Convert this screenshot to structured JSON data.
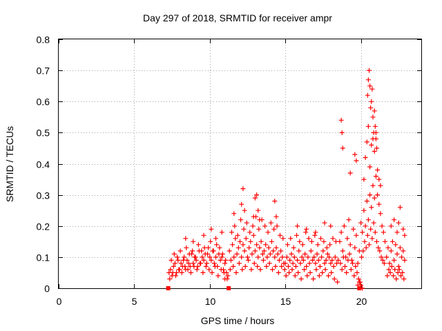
{
  "chart_data": {
    "type": "scatter",
    "title": "Day 297 of 2018, SRMTID for receiver ampr",
    "xlabel": "GPS time / hours",
    "ylabel": "SRMTID / TECUs",
    "xlim": [
      0,
      24
    ],
    "ylim": [
      0,
      0.8
    ],
    "grid": true,
    "x_ticks": [
      0,
      5,
      10,
      15,
      20
    ],
    "x_tick_labels": [
      "0",
      "5",
      "10",
      "15",
      "20"
    ],
    "y_ticks": [
      0,
      0.1,
      0.2,
      0.3,
      0.4,
      0.5,
      0.6,
      0.7,
      0.8
    ],
    "y_tick_labels": [
      "0",
      "0.1",
      "0.2",
      "0.3",
      "0.4",
      "0.5",
      "0.6",
      "0.7",
      "0.8"
    ],
    "marker": "+",
    "color": "#ff0000",
    "square_points": [
      {
        "x": 7.25,
        "y": 0.0
      },
      {
        "x": 11.25,
        "y": 0.0
      },
      {
        "x": 19.9,
        "y": 0.0
      }
    ],
    "series": [
      {
        "name": "SRMTID",
        "x": [
          7.3,
          7.4,
          7.5,
          7.6,
          7.7,
          7.8,
          7.9,
          8.0,
          8.1,
          8.2,
          8.3,
          8.4,
          8.5,
          8.6,
          8.7,
          8.8,
          8.9,
          9.0,
          9.1,
          9.2,
          9.3,
          9.4,
          9.5,
          9.6,
          9.7,
          9.8,
          9.9,
          10.0,
          10.1,
          10.2,
          10.3,
          10.4,
          10.5,
          10.6,
          10.7,
          10.8,
          10.9,
          11.0,
          11.1,
          11.2,
          7.35,
          7.55,
          7.75,
          7.95,
          8.15,
          8.35,
          8.55,
          8.75,
          8.95,
          9.15,
          9.35,
          9.55,
          9.75,
          9.95,
          10.15,
          10.35,
          10.55,
          10.75,
          10.95,
          11.15,
          7.45,
          7.65,
          7.85,
          8.05,
          8.25,
          8.45,
          8.65,
          8.85,
          9.05,
          9.25,
          9.45,
          9.65,
          9.85,
          10.05,
          10.25,
          10.45,
          10.65,
          10.85,
          11.05,
          8.4,
          8.9,
          9.6,
          10.1,
          10.4,
          10.8,
          11.0,
          11.3,
          11.4,
          11.5,
          11.6,
          11.7,
          11.8,
          11.9,
          12.0,
          12.1,
          12.2,
          12.3,
          12.4,
          12.5,
          12.6,
          12.7,
          12.8,
          12.9,
          13.0,
          13.1,
          13.2,
          13.3,
          13.4,
          13.5,
          13.6,
          13.7,
          13.8,
          13.9,
          14.0,
          14.1,
          14.2,
          14.3,
          14.4,
          14.5,
          14.6,
          14.7,
          14.8,
          14.9,
          11.35,
          11.55,
          11.75,
          11.95,
          12.15,
          12.35,
          12.55,
          12.75,
          12.95,
          13.15,
          13.35,
          13.55,
          13.75,
          13.95,
          14.15,
          14.35,
          14.55,
          14.75,
          14.95,
          11.45,
          11.65,
          11.85,
          12.05,
          12.25,
          12.45,
          12.65,
          12.85,
          13.05,
          13.25,
          13.45,
          13.65,
          13.85,
          14.05,
          14.25,
          14.45,
          14.65,
          14.85,
          11.6,
          12.1,
          12.2,
          12.3,
          12.9,
          13.0,
          13.1,
          13.2,
          13.3,
          14.3,
          14.4,
          15.0,
          15.1,
          15.2,
          15.3,
          15.4,
          15.5,
          15.6,
          15.7,
          15.8,
          15.9,
          16.0,
          16.1,
          16.2,
          16.3,
          16.4,
          16.5,
          16.6,
          16.7,
          16.8,
          16.9,
          17.0,
          17.1,
          17.2,
          17.3,
          17.4,
          17.5,
          17.6,
          17.7,
          17.8,
          17.9,
          18.0,
          18.1,
          18.2,
          18.3,
          18.4,
          18.5,
          15.05,
          15.25,
          15.45,
          15.65,
          15.85,
          16.05,
          16.25,
          16.45,
          16.65,
          16.85,
          17.05,
          17.25,
          17.45,
          17.65,
          17.85,
          18.05,
          18.25,
          18.45,
          15.15,
          15.35,
          15.55,
          15.75,
          15.95,
          16.15,
          16.35,
          16.55,
          16.75,
          16.95,
          17.15,
          17.35,
          17.55,
          17.75,
          17.95,
          18.15,
          18.35,
          15.8,
          16.4,
          17.0,
          17.6,
          18.0,
          18.6,
          18.7,
          18.8,
          18.9,
          19.0,
          19.1,
          19.2,
          19.3,
          19.4,
          19.5,
          19.6,
          19.7,
          19.8,
          19.9,
          20.0,
          20.1,
          20.2,
          20.3,
          20.4,
          20.5,
          20.6,
          20.7,
          20.8,
          20.9,
          21.0,
          21.1,
          21.2,
          21.3,
          21.4,
          21.5,
          21.6,
          18.65,
          18.75,
          18.85,
          18.95,
          19.05,
          19.15,
          19.25,
          19.35,
          19.45,
          19.55,
          19.65,
          19.75,
          19.85,
          19.95,
          20.05,
          20.15,
          20.25,
          20.35,
          20.45,
          20.55,
          20.65,
          20.75,
          20.85,
          20.95,
          21.05,
          21.15,
          21.25,
          21.35,
          21.45,
          21.55,
          18.7,
          18.75,
          18.8,
          19.3,
          19.6,
          19.7,
          20.2,
          20.3,
          20.4,
          20.5,
          20.6,
          20.7,
          20.8,
          20.9,
          21.0,
          21.1,
          21.2,
          21.3,
          20.45,
          20.5,
          20.55,
          20.6,
          20.65,
          20.7,
          20.75,
          20.8,
          20.85,
          20.9,
          20.95,
          21.0,
          21.05,
          19.8,
          19.9,
          20.0,
          20.1,
          21.7,
          21.8,
          21.9,
          22.0,
          22.1,
          22.2,
          22.3,
          22.4,
          22.5,
          22.6,
          22.7,
          22.8,
          22.9,
          21.75,
          21.85,
          21.95,
          22.05,
          22.15,
          22.25,
          22.35,
          22.45,
          22.55,
          22.65,
          22.75,
          22.85,
          22.0,
          22.2,
          22.4,
          22.6,
          22.8,
          22.5,
          22.9
        ],
        "y": [
          0.05,
          0.06,
          0.04,
          0.07,
          0.08,
          0.05,
          0.09,
          0.06,
          0.08,
          0.07,
          0.1,
          0.06,
          0.09,
          0.08,
          0.07,
          0.11,
          0.08,
          0.1,
          0.09,
          0.07,
          0.12,
          0.08,
          0.1,
          0.09,
          0.11,
          0.08,
          0.13,
          0.1,
          0.09,
          0.12,
          0.08,
          0.1,
          0.07,
          0.11,
          0.09,
          0.1,
          0.06,
          0.08,
          0.05,
          0.04,
          0.03,
          0.05,
          0.04,
          0.06,
          0.05,
          0.07,
          0.06,
          0.05,
          0.07,
          0.06,
          0.08,
          0.05,
          0.07,
          0.06,
          0.05,
          0.07,
          0.04,
          0.06,
          0.05,
          0.03,
          0.09,
          0.11,
          0.1,
          0.12,
          0.09,
          0.13,
          0.11,
          0.12,
          0.1,
          0.14,
          0.12,
          0.13,
          0.11,
          0.15,
          0.12,
          0.14,
          0.13,
          0.11,
          0.09,
          0.16,
          0.15,
          0.17,
          0.19,
          0.16,
          0.18,
          0.03,
          0.12,
          0.09,
          0.14,
          0.1,
          0.16,
          0.11,
          0.13,
          0.15,
          0.1,
          0.14,
          0.12,
          0.16,
          0.1,
          0.13,
          0.15,
          0.11,
          0.17,
          0.12,
          0.14,
          0.1,
          0.13,
          0.15,
          0.11,
          0.12,
          0.14,
          0.1,
          0.13,
          0.11,
          0.15,
          0.12,
          0.1,
          0.13,
          0.11,
          0.09,
          0.12,
          0.1,
          0.08,
          0.06,
          0.07,
          0.05,
          0.08,
          0.06,
          0.07,
          0.09,
          0.06,
          0.08,
          0.07,
          0.06,
          0.09,
          0.07,
          0.08,
          0.06,
          0.07,
          0.05,
          0.07,
          0.06,
          0.18,
          0.2,
          0.17,
          0.22,
          0.19,
          0.21,
          0.18,
          0.2,
          0.23,
          0.19,
          0.22,
          0.2,
          0.18,
          0.21,
          0.19,
          0.2,
          0.17,
          0.16,
          0.24,
          0.27,
          0.32,
          0.25,
          0.23,
          0.29,
          0.3,
          0.25,
          0.22,
          0.28,
          0.23,
          0.08,
          0.1,
          0.07,
          0.09,
          0.11,
          0.08,
          0.1,
          0.07,
          0.09,
          0.12,
          0.08,
          0.1,
          0.09,
          0.11,
          0.07,
          0.1,
          0.08,
          0.12,
          0.09,
          0.1,
          0.08,
          0.11,
          0.09,
          0.07,
          0.1,
          0.12,
          0.08,
          0.09,
          0.11,
          0.1,
          0.08,
          0.09,
          0.07,
          0.1,
          0.08,
          0.09,
          0.04,
          0.05,
          0.06,
          0.04,
          0.05,
          0.03,
          0.06,
          0.04,
          0.05,
          0.03,
          0.06,
          0.04,
          0.05,
          0.06,
          0.04,
          0.05,
          0.03,
          0.02,
          0.14,
          0.16,
          0.13,
          0.17,
          0.15,
          0.14,
          0.18,
          0.16,
          0.15,
          0.17,
          0.14,
          0.16,
          0.15,
          0.13,
          0.14,
          0.16,
          0.15,
          0.2,
          0.19,
          0.18,
          0.21,
          0.2,
          0.15,
          0.18,
          0.12,
          0.2,
          0.1,
          0.16,
          0.22,
          0.14,
          0.09,
          0.19,
          0.13,
          0.17,
          0.08,
          0.12,
          0.21,
          0.18,
          0.25,
          0.2,
          0.28,
          0.22,
          0.3,
          0.26,
          0.33,
          0.29,
          0.36,
          0.3,
          0.27,
          0.24,
          0.2,
          0.18,
          0.15,
          0.08,
          0.06,
          0.1,
          0.07,
          0.05,
          0.09,
          0.11,
          0.06,
          0.08,
          0.04,
          0.07,
          0.05,
          0.03,
          0.02,
          0.1,
          0.12,
          0.15,
          0.13,
          0.17,
          0.14,
          0.19,
          0.16,
          0.21,
          0.18,
          0.15,
          0.13,
          0.12,
          0.1,
          0.09,
          0.08,
          0.54,
          0.5,
          0.45,
          0.37,
          0.43,
          0.41,
          0.35,
          0.42,
          0.47,
          0.52,
          0.39,
          0.46,
          0.48,
          0.44,
          0.5,
          0.38,
          0.35,
          0.33,
          0.62,
          0.67,
          0.7,
          0.65,
          0.58,
          0.6,
          0.64,
          0.55,
          0.5,
          0.57,
          0.52,
          0.48,
          0.45,
          0.01,
          0.02,
          0.01,
          0.0,
          0.1,
          0.13,
          0.08,
          0.12,
          0.15,
          0.09,
          0.14,
          0.11,
          0.07,
          0.13,
          0.1,
          0.12,
          0.09,
          0.04,
          0.06,
          0.05,
          0.07,
          0.04,
          0.06,
          0.03,
          0.05,
          0.06,
          0.04,
          0.05,
          0.03,
          0.2,
          0.22,
          0.18,
          0.26,
          0.19,
          0.21,
          0.17
        ]
      }
    ]
  }
}
